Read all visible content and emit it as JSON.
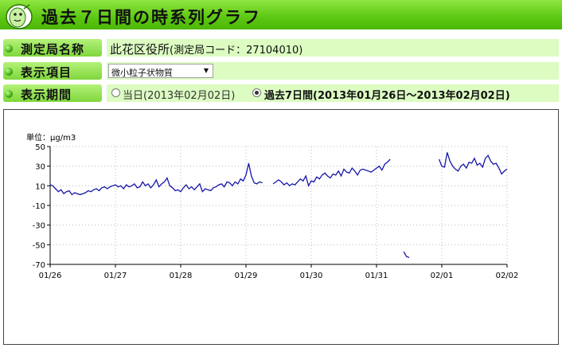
{
  "header": {
    "title": "過去７日間の時系列グラフ"
  },
  "rows": {
    "station": {
      "label": "測定局名称",
      "name": "此花区役所",
      "code_text": "(測定局コード：27104010)"
    },
    "item": {
      "label": "表示項目",
      "selected": "微小粒子状物質"
    },
    "period": {
      "label": "表示期間",
      "option_today": "当日(2013年02月02日)",
      "option_week": "過去7日間(2013年01月26日～2013年02月02日)"
    }
  },
  "colors": {
    "header_green": "#5cc712",
    "value_bg": "#dcfcc2",
    "line": "#1616a8"
  },
  "icons": {
    "mascot": "mascot-icon",
    "bullet": "green-dot-icon",
    "dropdown": "triangle-down-icon"
  },
  "chart_data": {
    "type": "line",
    "unit_label": "単位：μg/m3",
    "ylim": [
      -70,
      50
    ],
    "yticks": [
      50,
      30,
      10,
      -10,
      -30,
      -50,
      -70
    ],
    "ytick_labels": [
      "50",
      "30",
      "10",
      "-10",
      "-30",
      "-50",
      "-70"
    ],
    "xlim": [
      0,
      168
    ],
    "xticks": [
      0,
      24,
      48,
      72,
      96,
      120,
      144,
      168
    ],
    "xtick_labels": [
      "01/26",
      "01/27",
      "01/28",
      "01/29",
      "01/30",
      "01/31",
      "02/01",
      "02/02"
    ],
    "grid": true,
    "series": [
      {
        "values": [
          [
            0,
            11
          ],
          [
            1,
            10
          ],
          [
            2,
            7
          ],
          [
            3,
            4
          ],
          [
            4,
            6
          ],
          [
            5,
            2
          ],
          [
            6,
            4
          ],
          [
            7,
            5
          ],
          [
            8,
            1
          ],
          [
            9,
            3
          ],
          [
            10,
            2
          ],
          [
            11,
            1
          ],
          [
            12,
            2
          ],
          [
            13,
            3
          ],
          [
            14,
            5
          ],
          [
            15,
            4
          ],
          [
            16,
            6
          ],
          [
            17,
            7
          ],
          [
            18,
            5
          ],
          [
            19,
            8
          ],
          [
            20,
            9
          ],
          [
            21,
            7
          ],
          [
            22,
            9
          ],
          [
            23,
            10
          ],
          [
            24,
            11
          ],
          [
            25,
            9
          ],
          [
            26,
            10
          ],
          [
            27,
            7
          ],
          [
            28,
            11
          ],
          [
            29,
            9
          ],
          [
            30,
            10
          ],
          [
            31,
            12
          ],
          [
            32,
            8
          ],
          [
            33,
            9
          ],
          [
            34,
            14
          ],
          [
            35,
            10
          ],
          [
            36,
            12
          ],
          [
            37,
            8
          ],
          [
            38,
            11
          ],
          [
            39,
            16
          ],
          [
            40,
            9
          ],
          [
            41,
            12
          ],
          [
            42,
            14
          ],
          [
            43,
            18
          ],
          [
            44,
            10
          ],
          [
            45,
            8
          ],
          [
            46,
            5
          ],
          [
            47,
            6
          ],
          [
            48,
            4
          ],
          [
            49,
            8
          ],
          [
            50,
            11
          ],
          [
            51,
            7
          ],
          [
            52,
            9
          ],
          [
            53,
            6
          ],
          [
            54,
            9
          ],
          [
            55,
            12
          ],
          [
            56,
            4
          ],
          [
            57,
            7
          ],
          [
            58,
            6
          ],
          [
            59,
            5
          ],
          [
            60,
            8
          ],
          [
            61,
            9
          ],
          [
            62,
            11
          ],
          [
            63,
            12
          ],
          [
            64,
            9
          ],
          [
            65,
            14
          ],
          [
            66,
            13
          ],
          [
            67,
            10
          ],
          [
            68,
            14
          ],
          [
            69,
            12
          ],
          [
            70,
            17
          ],
          [
            71,
            15
          ],
          [
            72,
            21
          ],
          [
            73,
            33
          ],
          [
            74,
            20
          ],
          [
            75,
            13
          ],
          [
            76,
            12
          ],
          [
            77,
            14
          ],
          [
            78,
            13
          ],
          [
            79,
            null
          ],
          [
            80,
            null
          ],
          [
            81,
            null
          ],
          [
            82,
            12
          ],
          [
            83,
            14
          ],
          [
            84,
            16
          ],
          [
            85,
            14
          ],
          [
            86,
            11
          ],
          [
            87,
            13
          ],
          [
            88,
            10
          ],
          [
            89,
            12
          ],
          [
            90,
            11
          ],
          [
            91,
            14
          ],
          [
            92,
            17
          ],
          [
            93,
            15
          ],
          [
            94,
            20
          ],
          [
            95,
            10
          ],
          [
            96,
            15
          ],
          [
            97,
            14
          ],
          [
            98,
            19
          ],
          [
            99,
            17
          ],
          [
            100,
            21
          ],
          [
            101,
            23
          ],
          [
            102,
            20
          ],
          [
            103,
            18
          ],
          [
            104,
            22
          ],
          [
            105,
            21
          ],
          [
            106,
            25
          ],
          [
            107,
            20
          ],
          [
            108,
            27
          ],
          [
            109,
            24
          ],
          [
            110,
            23
          ],
          [
            111,
            28
          ],
          [
            112,
            25
          ],
          [
            113,
            21
          ],
          [
            114,
            26
          ],
          [
            115,
            27
          ],
          [
            116,
            26
          ],
          [
            117,
            25
          ],
          [
            118,
            24
          ],
          [
            119,
            26
          ],
          [
            120,
            28
          ],
          [
            121,
            30
          ],
          [
            122,
            26
          ],
          [
            123,
            32
          ],
          [
            124,
            34
          ],
          [
            125,
            37
          ],
          [
            126,
            null
          ],
          [
            127,
            null
          ],
          [
            128,
            null
          ],
          [
            129,
            null
          ],
          [
            130,
            -57
          ],
          [
            131,
            -62
          ],
          [
            132,
            -63
          ],
          [
            133,
            null
          ],
          [
            134,
            null
          ],
          [
            135,
            null
          ],
          [
            136,
            null
          ],
          [
            137,
            null
          ],
          [
            138,
            null
          ],
          [
            139,
            null
          ],
          [
            140,
            null
          ],
          [
            141,
            null
          ],
          [
            142,
            null
          ],
          [
            143,
            37
          ],
          [
            144,
            30
          ],
          [
            145,
            29
          ],
          [
            146,
            44
          ],
          [
            147,
            35
          ],
          [
            148,
            30
          ],
          [
            149,
            27
          ],
          [
            150,
            25
          ],
          [
            151,
            30
          ],
          [
            152,
            32
          ],
          [
            153,
            28
          ],
          [
            154,
            34
          ],
          [
            155,
            33
          ],
          [
            156,
            38
          ],
          [
            157,
            31
          ],
          [
            158,
            33
          ],
          [
            159,
            29
          ],
          [
            160,
            38
          ],
          [
            161,
            41
          ],
          [
            162,
            35
          ],
          [
            163,
            32
          ],
          [
            164,
            33
          ],
          [
            165,
            28
          ],
          [
            166,
            22
          ],
          [
            167,
            25
          ],
          [
            168,
            27
          ]
        ]
      }
    ]
  }
}
